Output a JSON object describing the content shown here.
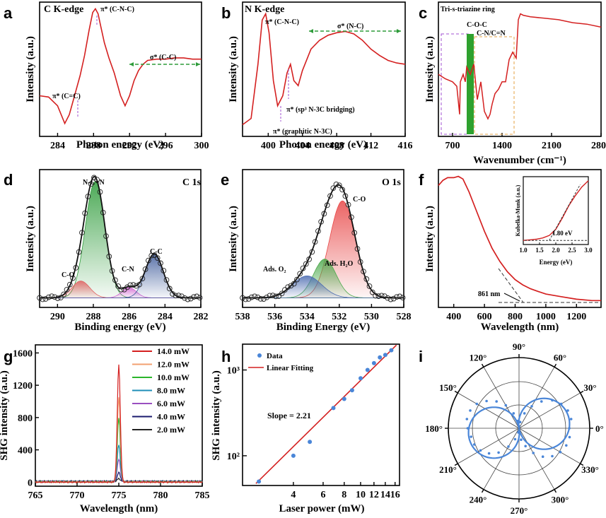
{
  "figure_title": "Multi-panel spectroscopy and SHG characterization",
  "colors": {
    "curve": "#d42020",
    "fit": "#111111",
    "peak_green": "#2e9b3a",
    "peak_pink": "#d060d0",
    "peak_blue": "#3d5a9a",
    "peak_red": "#e06060",
    "shg_point": "#4a86d8"
  },
  "chart_data": [
    {
      "id": "a",
      "type": "line",
      "panel_label": "a",
      "title": "C K-edge",
      "xlabel": "Photon energy (eV)",
      "ylabel": "Intensity (a.u.)",
      "xlim": [
        282,
        300
      ],
      "xticks": [
        284,
        288,
        292,
        296,
        300
      ],
      "x": [
        282,
        283,
        284,
        284.8,
        285.3,
        286,
        286.5,
        287,
        287.5,
        287.9,
        288.2,
        288.5,
        288.8,
        289.2,
        289.7,
        290.3,
        291,
        291.5,
        292,
        292.5,
        293,
        293.5,
        294,
        295,
        296,
        297,
        298,
        299,
        300
      ],
      "y": [
        0.3,
        0.29,
        0.22,
        0.08,
        0.15,
        0.33,
        0.46,
        0.62,
        0.82,
        0.96,
        0.99,
        0.95,
        0.85,
        0.72,
        0.6,
        0.48,
        0.3,
        0.22,
        0.3,
        0.42,
        0.5,
        0.55,
        0.58,
        0.59,
        0.59,
        0.6,
        0.6,
        0.59,
        0.59
      ],
      "annotations": [
        {
          "text": "π* (C=C)",
          "x": 285.8
        },
        {
          "text": "π* (C-N-C)",
          "x": 288.2
        },
        {
          "text": "σ* (C-C)",
          "x": 295.5
        }
      ]
    },
    {
      "id": "b",
      "type": "line",
      "panel_label": "b",
      "title": "N K-edge",
      "xlabel": "Photon energy (eV)",
      "ylabel": "Intensity (a.u.)",
      "xlim": [
        397,
        416
      ],
      "xticks": [
        400,
        404,
        408,
        412,
        416
      ],
      "x": [
        397,
        398,
        398.8,
        399.3,
        399.7,
        400.1,
        400.6,
        401.1,
        401.7,
        402.2,
        402.6,
        403,
        403.5,
        404,
        405,
        406,
        407,
        408,
        409,
        410,
        411,
        412,
        413,
        414,
        415,
        416
      ],
      "y": [
        0.07,
        0.12,
        0.55,
        0.9,
        0.95,
        0.8,
        0.42,
        0.22,
        0.3,
        0.48,
        0.55,
        0.42,
        0.38,
        0.5,
        0.67,
        0.74,
        0.78,
        0.8,
        0.81,
        0.79,
        0.74,
        0.67,
        0.62,
        0.58,
        0.56,
        0.55
      ],
      "annotations": [
        {
          "text": "π* (C-N-C)",
          "x": 399.7
        },
        {
          "text": "σ* (N-C)",
          "x": 410
        },
        {
          "text": "π* (sp³ N-3C bridging)",
          "x": 402.6
        },
        {
          "text": "π* (graphitic N-3C)",
          "x": 401.5
        }
      ]
    },
    {
      "id": "c",
      "type": "line",
      "panel_label": "c",
      "xlabel": "Wavenumber (cm⁻¹)",
      "ylabel": "Intensity (a.u.)",
      "xlim": [
        500,
        2800
      ],
      "xticks": [
        700,
        1400,
        2100,
        2800
      ],
      "x": [
        500,
        600,
        700,
        760,
        800,
        810,
        850,
        880,
        900,
        950,
        1000,
        1050,
        1100,
        1150,
        1200,
        1230,
        1260,
        1300,
        1350,
        1400,
        1450,
        1500,
        1550,
        1600,
        1630,
        1660,
        1700,
        1800,
        2000,
        2200,
        2400,
        2600,
        2800
      ],
      "y": [
        0.55,
        0.52,
        0.5,
        0.47,
        0.28,
        0.5,
        0.55,
        0.5,
        0.6,
        0.55,
        0.62,
        0.38,
        0.5,
        0.3,
        0.25,
        0.28,
        0.35,
        0.42,
        0.45,
        0.5,
        0.5,
        0.65,
        0.7,
        0.66,
        0.92,
        0.96,
        0.95,
        0.94,
        0.93,
        0.92,
        0.9,
        0.89,
        0.87
      ],
      "annotations": [
        {
          "text": "Tri-s-triazine ring"
        },
        {
          "text": "C-O-C"
        },
        {
          "text": "C-N/C=N"
        }
      ]
    },
    {
      "id": "d",
      "type": "line",
      "panel_label": "d",
      "title": "C 1s",
      "xlabel": "Binding energy (eV)",
      "ylabel": "Intensity (a.u.)",
      "xlim": [
        291,
        282
      ],
      "xticks": [
        290,
        288,
        286,
        284,
        282
      ],
      "peaks": [
        {
          "name": "N-C=N",
          "center": 287.9,
          "height": 0.9,
          "sigma": 0.55
        },
        {
          "name": "C-O",
          "center": 288.7,
          "height": 0.13,
          "sigma": 0.5
        },
        {
          "name": "C-N",
          "center": 286.0,
          "height": 0.08,
          "sigma": 0.4
        },
        {
          "name": "C-C",
          "center": 284.6,
          "height": 0.34,
          "sigma": 0.5
        }
      ]
    },
    {
      "id": "e",
      "type": "line",
      "panel_label": "e",
      "title": "O 1s",
      "xlabel": "Binding Energy (eV)",
      "ylabel": "Intensity (a.u.)",
      "xlim": [
        538,
        528
      ],
      "xticks": [
        538,
        536,
        534,
        532,
        530,
        528
      ],
      "peaks": [
        {
          "name": "C-O",
          "center": 531.8,
          "height": 0.75,
          "sigma": 0.8
        },
        {
          "name": "Ads. H₂O",
          "center": 532.9,
          "height": 0.3,
          "sigma": 0.7
        },
        {
          "name": "Ads. O₂",
          "center": 534.0,
          "height": 0.17,
          "sigma": 0.9
        }
      ]
    },
    {
      "id": "f",
      "type": "line",
      "panel_label": "f",
      "xlabel": "Wavelength (nm)",
      "ylabel": "Intensity (a.u.)",
      "xlim": [
        300,
        1360
      ],
      "xticks": [
        400,
        600,
        800,
        1000,
        1200
      ],
      "x": [
        300,
        330,
        360,
        400,
        430,
        460,
        500,
        550,
        600,
        650,
        700,
        750,
        800,
        850,
        900,
        950,
        1000,
        1100,
        1200,
        1300,
        1360
      ],
      "y": [
        0.9,
        0.94,
        0.96,
        0.96,
        0.97,
        0.95,
        0.85,
        0.7,
        0.55,
        0.42,
        0.32,
        0.24,
        0.18,
        0.14,
        0.11,
        0.09,
        0.07,
        0.05,
        0.03,
        0.02,
        0.02
      ],
      "annotations": [
        {
          "text": "861 nm",
          "x": 861
        }
      ],
      "inset": {
        "xlabel": "Energy (eV)",
        "ylabel": "Kubelka-Munk (a.u.)",
        "xlim": [
          1.0,
          3.0
        ],
        "xticks": [
          1.0,
          1.5,
          2.0,
          2.5,
          3.0
        ],
        "x": [
          1.0,
          1.2,
          1.4,
          1.6,
          1.8,
          2.0,
          2.2,
          2.4,
          2.6,
          2.8,
          3.0
        ],
        "y": [
          0.02,
          0.03,
          0.04,
          0.06,
          0.1,
          0.2,
          0.38,
          0.58,
          0.74,
          0.88,
          0.98
        ],
        "annotation": "1.80 eV"
      }
    },
    {
      "id": "g",
      "type": "line",
      "panel_label": "g",
      "xlabel": "Wavelength (nm)",
      "ylabel": "SHG intensity (a.u.)",
      "xlim": [
        765,
        785
      ],
      "xticks": [
        765,
        770,
        775,
        780,
        785
      ],
      "ylim": [
        -50,
        1700
      ],
      "yticks": [
        0,
        400,
        800,
        1200,
        1600
      ],
      "center": 775,
      "series": [
        {
          "name": "14.0 mW",
          "peak": 1450,
          "color": "#d42020"
        },
        {
          "name": "12.0 mW",
          "peak": 1050,
          "color": "#f2a070"
        },
        {
          "name": "10.0 mW",
          "peak": 790,
          "color": "#2bb52b"
        },
        {
          "name": "8.0 mW",
          "peak": 460,
          "color": "#1f8fb8"
        },
        {
          "name": "6.0 mW",
          "peak": 280,
          "color": "#9a4fc0"
        },
        {
          "name": "4.0 mW",
          "peak": 110,
          "color": "#1a1a6e"
        },
        {
          "name": "2.0 mW",
          "peak": 30,
          "color": "#222222"
        }
      ]
    },
    {
      "id": "h",
      "type": "scatter",
      "panel_label": "h",
      "xlabel": "Laser power (mW)",
      "ylabel": "SHG intensity (a.u.)",
      "xscale": "log",
      "yscale": "log",
      "xlim": [
        2,
        17
      ],
      "ylim": [
        45,
        2000
      ],
      "xticks": [
        4,
        6,
        8,
        10,
        12,
        14,
        16
      ],
      "xtick_labels": [
        "4",
        "6",
        "8",
        "10",
        "12",
        "14",
        "16"
      ],
      "yticks": [
        100,
        1000
      ],
      "ytick_labels": [
        "10²",
        "10³"
      ],
      "x": [
        2.5,
        4,
        5,
        6.9,
        8,
        8.9,
        10,
        11,
        12,
        13,
        14,
        15.2
      ],
      "y": [
        50,
        100,
        145,
        360,
        460,
        580,
        800,
        1000,
        1200,
        1400,
        1500,
        1700
      ],
      "legend": [
        "Data",
        "Linear Fitting"
      ],
      "slope_text": "Slope = 2.21",
      "fit": {
        "slope": 2.21,
        "x0": 2.5,
        "y0": 52
      }
    },
    {
      "id": "i",
      "type": "scatter",
      "panel_label": "i",
      "coordinate_system": "polar",
      "angle_labels": [
        "0°",
        "30°",
        "60°",
        "90°",
        "120°",
        "150°",
        "180°",
        "210°",
        "240°",
        "270°",
        "300°",
        "330°"
      ],
      "model": "r = |cos(theta - 10°)|",
      "theta_deg": [
        0,
        10,
        20,
        30,
        40,
        50,
        60,
        70,
        80,
        90,
        100,
        110,
        120,
        130,
        140,
        150,
        160,
        170,
        180,
        190,
        200,
        210,
        220,
        230,
        240,
        250,
        260,
        270,
        280,
        290,
        300,
        310,
        320,
        330,
        340,
        350
      ],
      "r": [
        0.95,
        1.0,
        0.98,
        0.92,
        0.82,
        0.66,
        0.48,
        0.3,
        0.12,
        0.04,
        0.14,
        0.3,
        0.5,
        0.66,
        0.8,
        0.92,
        0.98,
        1.0,
        0.97,
        0.92,
        0.9,
        0.84,
        0.74,
        0.6,
        0.4,
        0.22,
        0.08,
        0.06,
        0.22,
        0.36,
        0.54,
        0.7,
        0.82,
        0.9,
        0.95,
        0.97
      ]
    }
  ]
}
